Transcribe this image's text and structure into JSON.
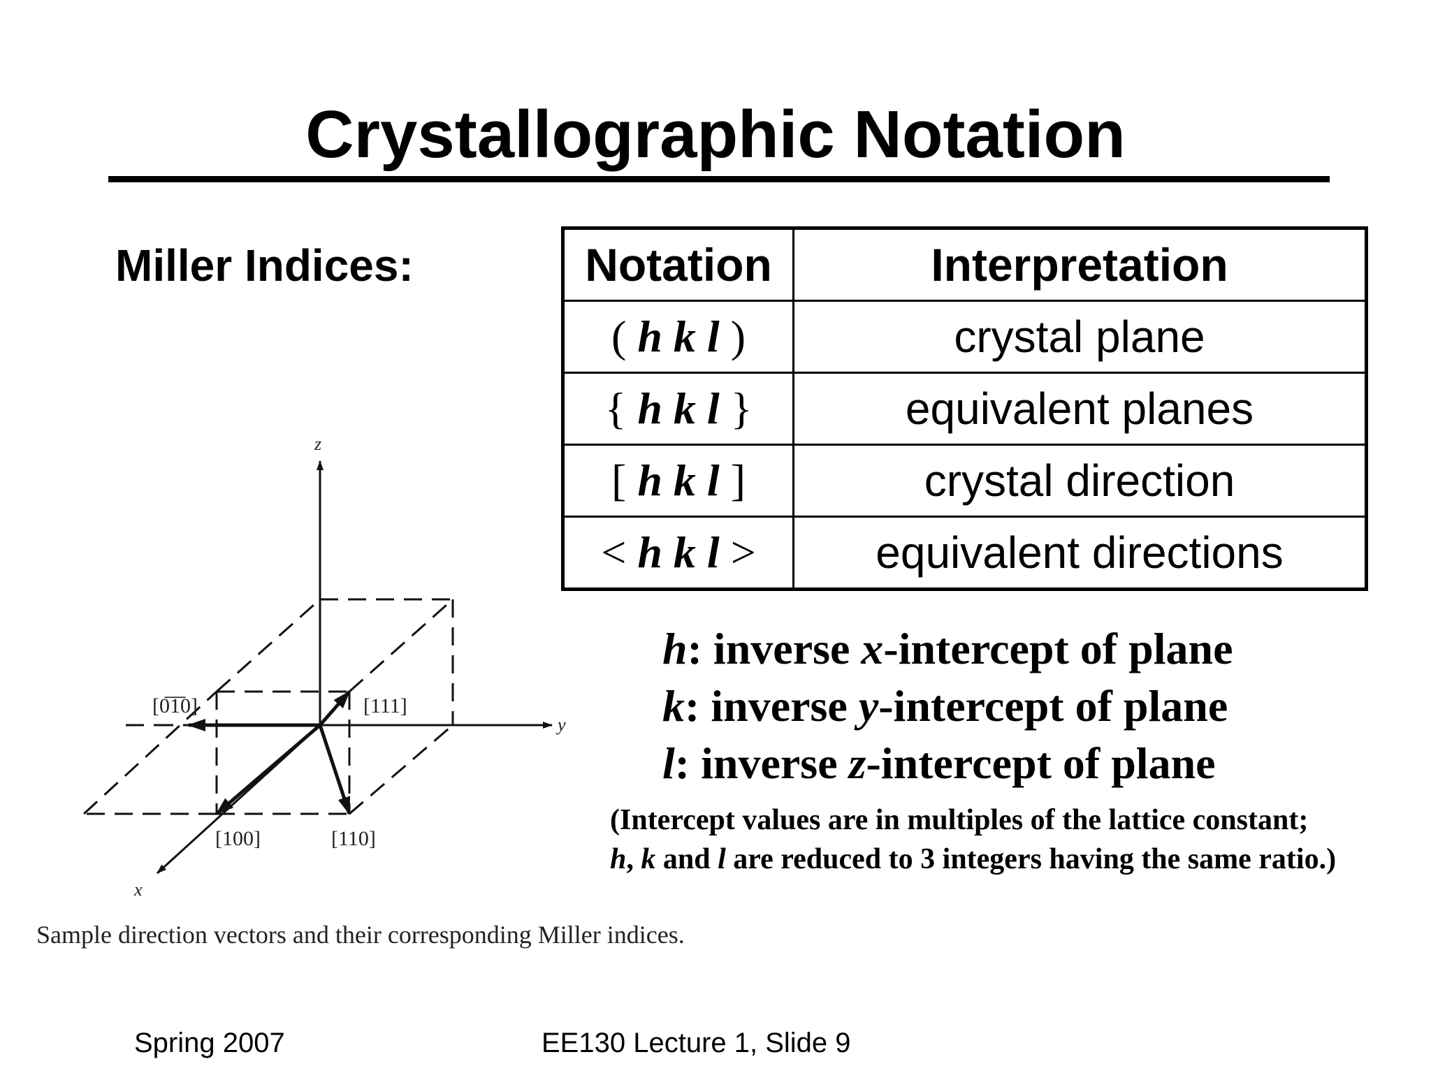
{
  "title": "Crystallographic Notation",
  "subtitle": "Miller Indices:",
  "table": {
    "headers": [
      "Notation",
      "Interpretation"
    ],
    "rows": [
      {
        "open": "(",
        "close": ")",
        "interpretation": "crystal plane"
      },
      {
        "open": "{",
        "close": "}",
        "interpretation": "equivalent planes"
      },
      {
        "open": "[",
        "close": "]",
        "interpretation": "crystal direction"
      },
      {
        "open": "<",
        "close": ">",
        "interpretation": "equivalent directions"
      }
    ],
    "indices": "h k l"
  },
  "definitions": [
    {
      "symbol": "h",
      "text_before": ": inverse ",
      "axis": "x",
      "text_after": "-intercept of plane"
    },
    {
      "symbol": "k",
      "text_before": ": inverse ",
      "axis": "y",
      "text_after": "-intercept of plane"
    },
    {
      "symbol": "l",
      "text_before": ": inverse ",
      "axis": "z",
      "text_after": "-intercept of plane"
    }
  ],
  "note": {
    "line1": "(Intercept values are in multiples of the lattice constant;",
    "line2_h": "h",
    "line2_sep1": ", ",
    "line2_k": "k",
    "line2_and": " and ",
    "line2_l": "l",
    "line2_rest": " are reduced to 3 integers having the same ratio.)"
  },
  "diagram": {
    "axis_labels": {
      "x": "x",
      "y": "y",
      "z": "z"
    },
    "vector_labels": {
      "v010bar": "[0̅1̅0]",
      "v111": "[111]",
      "v100": "[100]",
      "v110": "[110]"
    }
  },
  "caption": "Sample direction vectors and their corresponding Miller indices.",
  "footer": {
    "left": "Spring 2007",
    "center": "EE130 Lecture 1, Slide 9"
  }
}
